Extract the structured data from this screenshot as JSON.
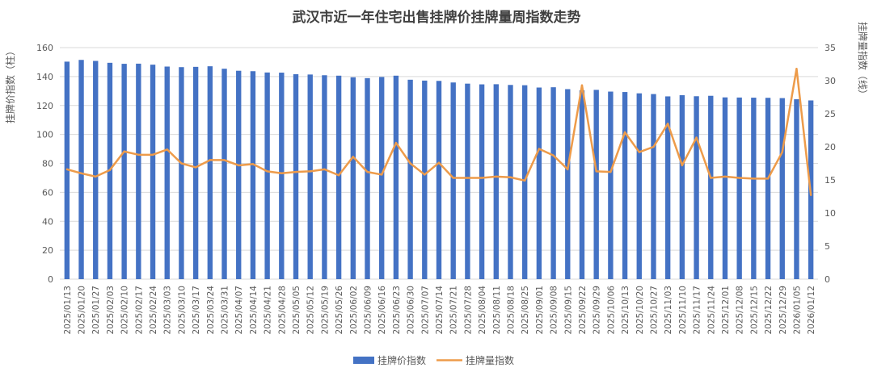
{
  "chart_data": {
    "type": "bar+line",
    "title": "武汉市近一年住宅出售挂牌价挂牌量周指数走势",
    "ylabel_left": "挂牌价指数（柱）",
    "ylabel_right": "挂牌量指数（线）",
    "ylim_left": [
      0,
      160
    ],
    "yticks_left": [
      "0",
      "20",
      "40",
      "60",
      "80",
      "100",
      "120",
      "140",
      "160"
    ],
    "ylim_right": [
      0,
      35
    ],
    "yticks_right": [
      "0",
      "5",
      "10",
      "15",
      "20",
      "25",
      "30",
      "35"
    ],
    "grid": true,
    "legend_position": "bottom",
    "categories": [
      "2025/01/13",
      "2025/01/20",
      "2025/01/27",
      "2025/02/03",
      "2025/02/10",
      "2025/02/17",
      "2025/02/24",
      "2025/03/03",
      "2025/03/10",
      "2025/03/17",
      "2025/03/24",
      "2025/03/31",
      "2025/04/07",
      "2025/04/14",
      "2025/04/21",
      "2025/04/28",
      "2025/05/05",
      "2025/05/12",
      "2025/05/19",
      "2025/05/26",
      "2025/06/02",
      "2025/06/09",
      "2025/06/16",
      "2025/06/23",
      "2025/06/30",
      "2025/07/07",
      "2025/07/14",
      "2025/07/21",
      "2025/07/28",
      "2025/08/04",
      "2025/08/11",
      "2025/08/18",
      "2025/08/25",
      "2025/09/01",
      "2025/09/08",
      "2025/09/15",
      "2025/09/22",
      "2025/09/29",
      "2025/10/06",
      "2025/10/13",
      "2025/10/20",
      "2025/10/27",
      "2025/11/03",
      "2025/11/10",
      "2025/11/17",
      "2025/11/24",
      "2025/12/01",
      "2025/12/08",
      "2025/12/15",
      "2025/12/22",
      "2025/12/29",
      "2026/01/05",
      "2026/01/12"
    ],
    "series": [
      {
        "name": "挂牌价指数",
        "type": "bar",
        "axis": "left",
        "color": "#4472c4",
        "values": [
          150.3,
          151.5,
          150.8,
          149.5,
          148.8,
          148.9,
          148.2,
          146.9,
          146.5,
          146.7,
          147.1,
          145.4,
          144.0,
          143.7,
          142.8,
          142.7,
          141.6,
          141.4,
          140.9,
          140.6,
          139.5,
          138.9,
          139.7,
          140.6,
          137.8,
          137.2,
          137.0,
          135.9,
          135.1,
          134.6,
          134.7,
          134.2,
          134.0,
          132.4,
          132.6,
          131.3,
          130.5,
          130.8,
          129.6,
          129.3,
          128.4,
          127.9,
          126.3,
          127.1,
          126.4,
          126.7,
          125.6,
          125.5,
          125.4,
          125.3,
          125.1,
          124.3,
          123.5
        ]
      },
      {
        "name": "挂牌量指数",
        "type": "line",
        "axis": "right",
        "color": "#ed9b4a",
        "values": [
          16.6,
          16.0,
          15.5,
          16.5,
          19.3,
          18.8,
          18.8,
          19.6,
          17.5,
          16.9,
          18.0,
          18.0,
          17.2,
          17.4,
          16.3,
          16.0,
          16.2,
          16.3,
          16.6,
          15.7,
          18.5,
          16.2,
          15.8,
          20.6,
          17.5,
          15.8,
          17.6,
          15.3,
          15.3,
          15.3,
          15.5,
          15.4,
          14.9,
          19.7,
          18.7,
          16.6,
          29.3,
          16.3,
          16.2,
          22.2,
          19.2,
          20.0,
          23.5,
          17.2,
          21.4,
          15.3,
          15.5,
          15.3,
          15.2,
          15.2,
          19.2,
          31.8,
          12.7
        ]
      }
    ]
  }
}
